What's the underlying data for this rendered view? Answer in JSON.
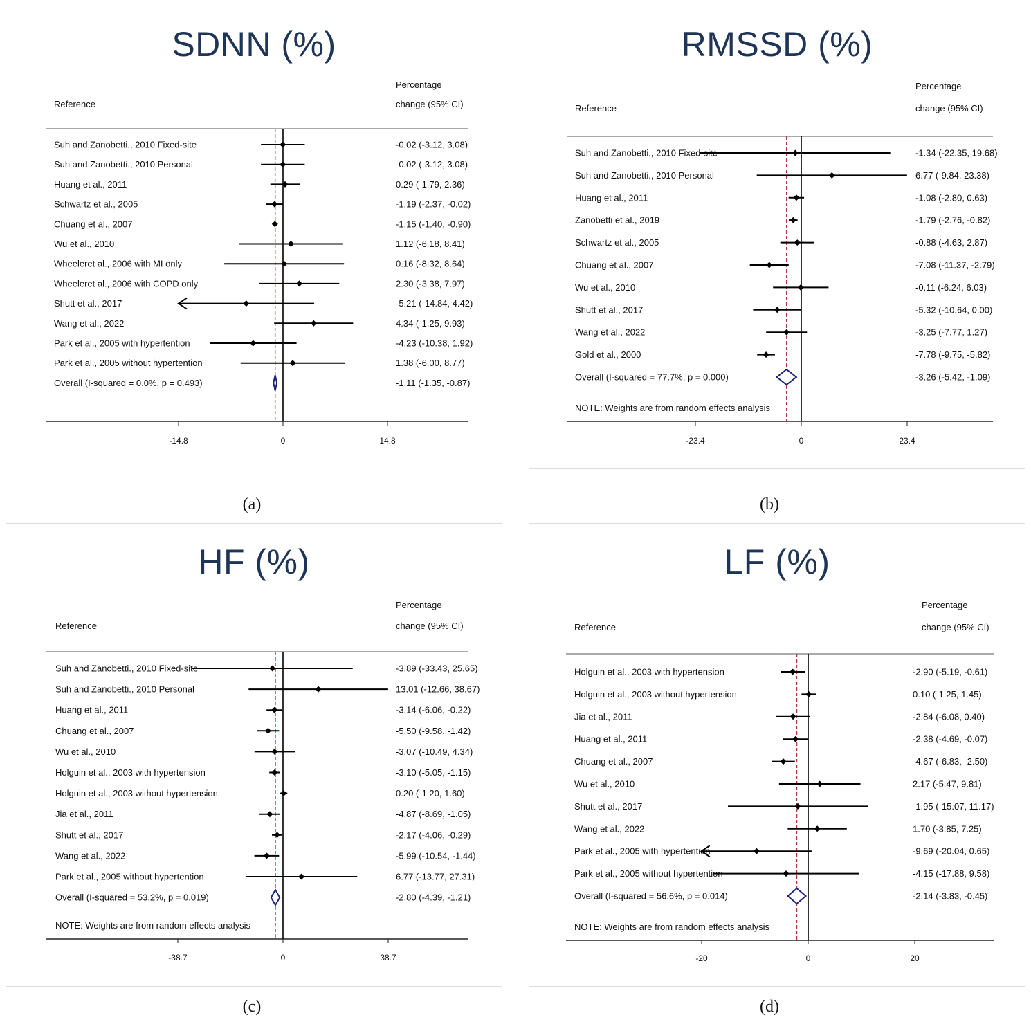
{
  "figure": {
    "colors": {
      "title": "#1e3557",
      "overall_diamond": "#1a237e",
      "reference_line": "#b03a3a",
      "marker": "#000000"
    },
    "captions": [
      "(a)",
      "(b)",
      "(c)",
      "(d)"
    ]
  },
  "chart_data": [
    {
      "type": "forest",
      "title": "SDNN (%)",
      "caption_letter": "a",
      "col_reference": "Reference",
      "col_effect_line1": "Percentage",
      "col_effect_line2": "change (95% CI)",
      "x_ticks": [
        -14.8,
        0,
        14.8
      ],
      "x_tick_labels": [
        "-14.8",
        "0",
        "14.8"
      ],
      "xlim": [
        -14.8,
        14.8
      ],
      "overall_line_at": -1.11,
      "studies": [
        {
          "label": "Suh and Zanobetti., 2010 Fixed-site",
          "est": -0.02,
          "lo": -3.12,
          "hi": 3.08,
          "text": "-0.02 (-3.12, 3.08)"
        },
        {
          "label": "Suh and Zanobetti., 2010 Personal",
          "est": -0.02,
          "lo": -3.12,
          "hi": 3.08,
          "text": "-0.02 (-3.12, 3.08)"
        },
        {
          "label": "Huang et al., 2011",
          "est": 0.29,
          "lo": -1.79,
          "hi": 2.36,
          "text": "0.29 (-1.79, 2.36)"
        },
        {
          "label": "Schwartz et al., 2005",
          "est": -1.19,
          "lo": -2.37,
          "hi": -0.02,
          "text": "-1.19 (-2.37, -0.02)"
        },
        {
          "label": "Chuang et al., 2007",
          "est": -1.15,
          "lo": -1.4,
          "hi": -0.9,
          "text": "-1.15 (-1.40, -0.90)"
        },
        {
          "label": "Wu et al., 2010",
          "est": 1.12,
          "lo": -6.18,
          "hi": 8.41,
          "text": "1.12 (-6.18, 8.41)"
        },
        {
          "label": "Wheeleret al., 2006 with MI only",
          "est": 0.16,
          "lo": -8.32,
          "hi": 8.64,
          "text": "0.16 (-8.32, 8.64)"
        },
        {
          "label": "Wheeleret al., 2006 with COPD only",
          "est": 2.3,
          "lo": -3.38,
          "hi": 7.97,
          "text": "2.30 (-3.38, 7.97)"
        },
        {
          "label": "Shutt et al., 2017",
          "est": -5.21,
          "lo": -14.84,
          "hi": 4.42,
          "text": "-5.21 (-14.84, 4.42)"
        },
        {
          "label": "Wang et al., 2022",
          "est": 4.34,
          "lo": -1.25,
          "hi": 9.93,
          "text": "4.34 (-1.25, 9.93)"
        },
        {
          "label": "Park et al., 2005 with hypertention",
          "est": -4.23,
          "lo": -10.38,
          "hi": 1.92,
          "text": "-4.23 (-10.38, 1.92)"
        },
        {
          "label": "Park et al., 2005 without hypertention",
          "est": 1.38,
          "lo": -6.0,
          "hi": 8.77,
          "text": "1.38 (-6.00, 8.77)"
        }
      ],
      "overall": {
        "label": "Overall  (I-squared = 0.0%, p = 0.493)",
        "est": -1.11,
        "lo": -1.35,
        "hi": -0.87,
        "text": "-1.11 (-1.35, -0.87)"
      },
      "note": ""
    },
    {
      "type": "forest",
      "title": "RMSSD (%)",
      "caption_letter": "b",
      "col_reference": "Reference",
      "col_effect_line1": "Percentage",
      "col_effect_line2": "change (95% CI)",
      "x_ticks": [
        -23.4,
        0,
        23.4
      ],
      "x_tick_labels": [
        "-23.4",
        "0",
        "23.4"
      ],
      "xlim": [
        -23.4,
        23.4
      ],
      "overall_line_at": -3.26,
      "studies": [
        {
          "label": "Suh and Zanobetti., 2010 Fixed-site",
          "est": -1.34,
          "lo": -22.35,
          "hi": 19.68,
          "text": "-1.34 (-22.35, 19.68)"
        },
        {
          "label": "Suh and Zanobetti., 2010 Personal",
          "est": 6.77,
          "lo": -9.84,
          "hi": 23.38,
          "text": "6.77 (-9.84, 23.38)"
        },
        {
          "label": "Huang et al., 2011",
          "est": -1.08,
          "lo": -2.8,
          "hi": 0.63,
          "text": "-1.08 (-2.80, 0.63)"
        },
        {
          "label": "Zanobetti et al., 2019",
          "est": -1.79,
          "lo": -2.76,
          "hi": -0.82,
          "text": "-1.79 (-2.76, -0.82)"
        },
        {
          "label": "Schwartz et al., 2005",
          "est": -0.88,
          "lo": -4.63,
          "hi": 2.87,
          "text": "-0.88 (-4.63, 2.87)"
        },
        {
          "label": "Chuang et al., 2007",
          "est": -7.08,
          "lo": -11.37,
          "hi": -2.79,
          "text": "-7.08 (-11.37, -2.79)"
        },
        {
          "label": "Wu et al., 2010",
          "est": -0.11,
          "lo": -6.24,
          "hi": 6.03,
          "text": "-0.11 (-6.24, 6.03)"
        },
        {
          "label": "Shutt et al., 2017",
          "est": -5.32,
          "lo": -10.64,
          "hi": 0.0,
          "text": "-5.32 (-10.64, 0.00)"
        },
        {
          "label": "Wang et al., 2022",
          "est": -3.25,
          "lo": -7.77,
          "hi": 1.27,
          "text": "-3.25 (-7.77, 1.27)"
        },
        {
          "label": "Gold et al., 2000",
          "est": -7.78,
          "lo": -9.75,
          "hi": -5.82,
          "text": "-7.78 (-9.75, -5.82)"
        }
      ],
      "overall": {
        "label": "Overall  (I-squared = 77.7%, p = 0.000)",
        "est": -3.26,
        "lo": -5.42,
        "hi": -1.09,
        "text": "-3.26 (-5.42, -1.09)"
      },
      "note": "NOTE: Weights are from random effects analysis"
    },
    {
      "type": "forest",
      "title": "HF (%)",
      "caption_letter": "c",
      "col_reference": "Reference",
      "col_effect_line1": "Percentage",
      "col_effect_line2": "change (95% CI)",
      "x_ticks": [
        -38.7,
        0,
        38.7
      ],
      "x_tick_labels": [
        "-38.7",
        "0",
        "38.7"
      ],
      "xlim": [
        -38.7,
        38.7
      ],
      "overall_line_at": -2.8,
      "studies": [
        {
          "label": "Suh and Zanobetti., 2010 Fixed-site",
          "est": -3.89,
          "lo": -33.43,
          "hi": 25.65,
          "text": "-3.89 (-33.43, 25.65)"
        },
        {
          "label": "Suh and Zanobetti., 2010 Personal",
          "est": 13.01,
          "lo": -12.66,
          "hi": 38.67,
          "text": "13.01 (-12.66, 38.67)"
        },
        {
          "label": "Huang et al., 2011",
          "est": -3.14,
          "lo": -6.06,
          "hi": -0.22,
          "text": "-3.14 (-6.06, -0.22)"
        },
        {
          "label": "Chuang et al., 2007",
          "est": -5.5,
          "lo": -9.58,
          "hi": -1.42,
          "text": "-5.50 (-9.58, -1.42)"
        },
        {
          "label": "Wu et al., 2010",
          "est": -3.07,
          "lo": -10.49,
          "hi": 4.34,
          "text": "-3.07 (-10.49, 4.34)"
        },
        {
          "label": "Holguin et al., 2003 with hypertension",
          "est": -3.1,
          "lo": -5.05,
          "hi": -1.15,
          "text": "-3.10 (-5.05, -1.15)"
        },
        {
          "label": "Holguin et al., 2003 without hypertension",
          "est": 0.2,
          "lo": -1.2,
          "hi": 1.6,
          "text": "0.20 (-1.20, 1.60)"
        },
        {
          "label": "Jia et al., 2011",
          "est": -4.87,
          "lo": -8.69,
          "hi": -1.05,
          "text": "-4.87 (-8.69, -1.05)"
        },
        {
          "label": "Shutt et al., 2017",
          "est": -2.17,
          "lo": -4.06,
          "hi": -0.29,
          "text": "-2.17 (-4.06, -0.29)"
        },
        {
          "label": "Wang et al., 2022",
          "est": -5.99,
          "lo": -10.54,
          "hi": -1.44,
          "text": "-5.99 (-10.54, -1.44)"
        },
        {
          "label": "Park et al., 2005 without hypertention",
          "est": 6.77,
          "lo": -13.77,
          "hi": 27.31,
          "text": "6.77 (-13.77, 27.31)"
        }
      ],
      "overall": {
        "label": "Overall  (I-squared = 53.2%, p = 0.019)",
        "est": -2.8,
        "lo": -4.39,
        "hi": -1.21,
        "text": "-2.80 (-4.39, -1.21)"
      },
      "note": "NOTE: Weights are from random effects analysis"
    },
    {
      "type": "forest",
      "title": "LF (%)",
      "caption_letter": "d",
      "col_reference": "Reference",
      "col_effect_line1": "Percentage",
      "col_effect_line2": "change (95% CI)",
      "x_ticks": [
        -20,
        0,
        20
      ],
      "x_tick_labels": [
        "-20",
        "0",
        "20"
      ],
      "xlim": [
        -20.04,
        20.04
      ],
      "overall_line_at": -2.14,
      "studies": [
        {
          "label": "Holguin et al., 2003 with hypertension",
          "est": -2.9,
          "lo": -5.19,
          "hi": -0.61,
          "text": "-2.90 (-5.19, -0.61)"
        },
        {
          "label": "Holguin et al., 2003 without hypertension",
          "est": 0.1,
          "lo": -1.25,
          "hi": 1.45,
          "text": "0.10 (-1.25, 1.45)"
        },
        {
          "label": "Jia et al., 2011",
          "est": -2.84,
          "lo": -6.08,
          "hi": 0.4,
          "text": "-2.84 (-6.08, 0.40)"
        },
        {
          "label": "Huang et al., 2011",
          "est": -2.38,
          "lo": -4.69,
          "hi": -0.07,
          "text": "-2.38 (-4.69, -0.07)"
        },
        {
          "label": "Chuang et al., 2007",
          "est": -4.67,
          "lo": -6.83,
          "hi": -2.5,
          "text": "-4.67 (-6.83, -2.50)"
        },
        {
          "label": "Wu et al., 2010",
          "est": 2.17,
          "lo": -5.47,
          "hi": 9.81,
          "text": "2.17 (-5.47, 9.81)"
        },
        {
          "label": "Shutt et al., 2017",
          "est": -1.95,
          "lo": -15.07,
          "hi": 11.17,
          "text": "-1.95 (-15.07, 11.17)"
        },
        {
          "label": "Wang et al., 2022",
          "est": 1.7,
          "lo": -3.85,
          "hi": 7.25,
          "text": "1.70 (-3.85, 7.25)"
        },
        {
          "label": "Park et al., 2005 with hypertention",
          "est": -9.69,
          "lo": -20.04,
          "hi": 0.65,
          "text": "-9.69 (-20.04, 0.65)"
        },
        {
          "label": "Park et al., 2005 without hypertention",
          "est": -4.15,
          "lo": -17.88,
          "hi": 9.58,
          "text": "-4.15 (-17.88, 9.58)"
        }
      ],
      "overall": {
        "label": "Overall  (I-squared = 56.6%, p = 0.014)",
        "est": -2.14,
        "lo": -3.83,
        "hi": -0.45,
        "text": "-2.14 (-3.83, -0.45)"
      },
      "note": "NOTE: Weights are from random effects analysis"
    }
  ]
}
